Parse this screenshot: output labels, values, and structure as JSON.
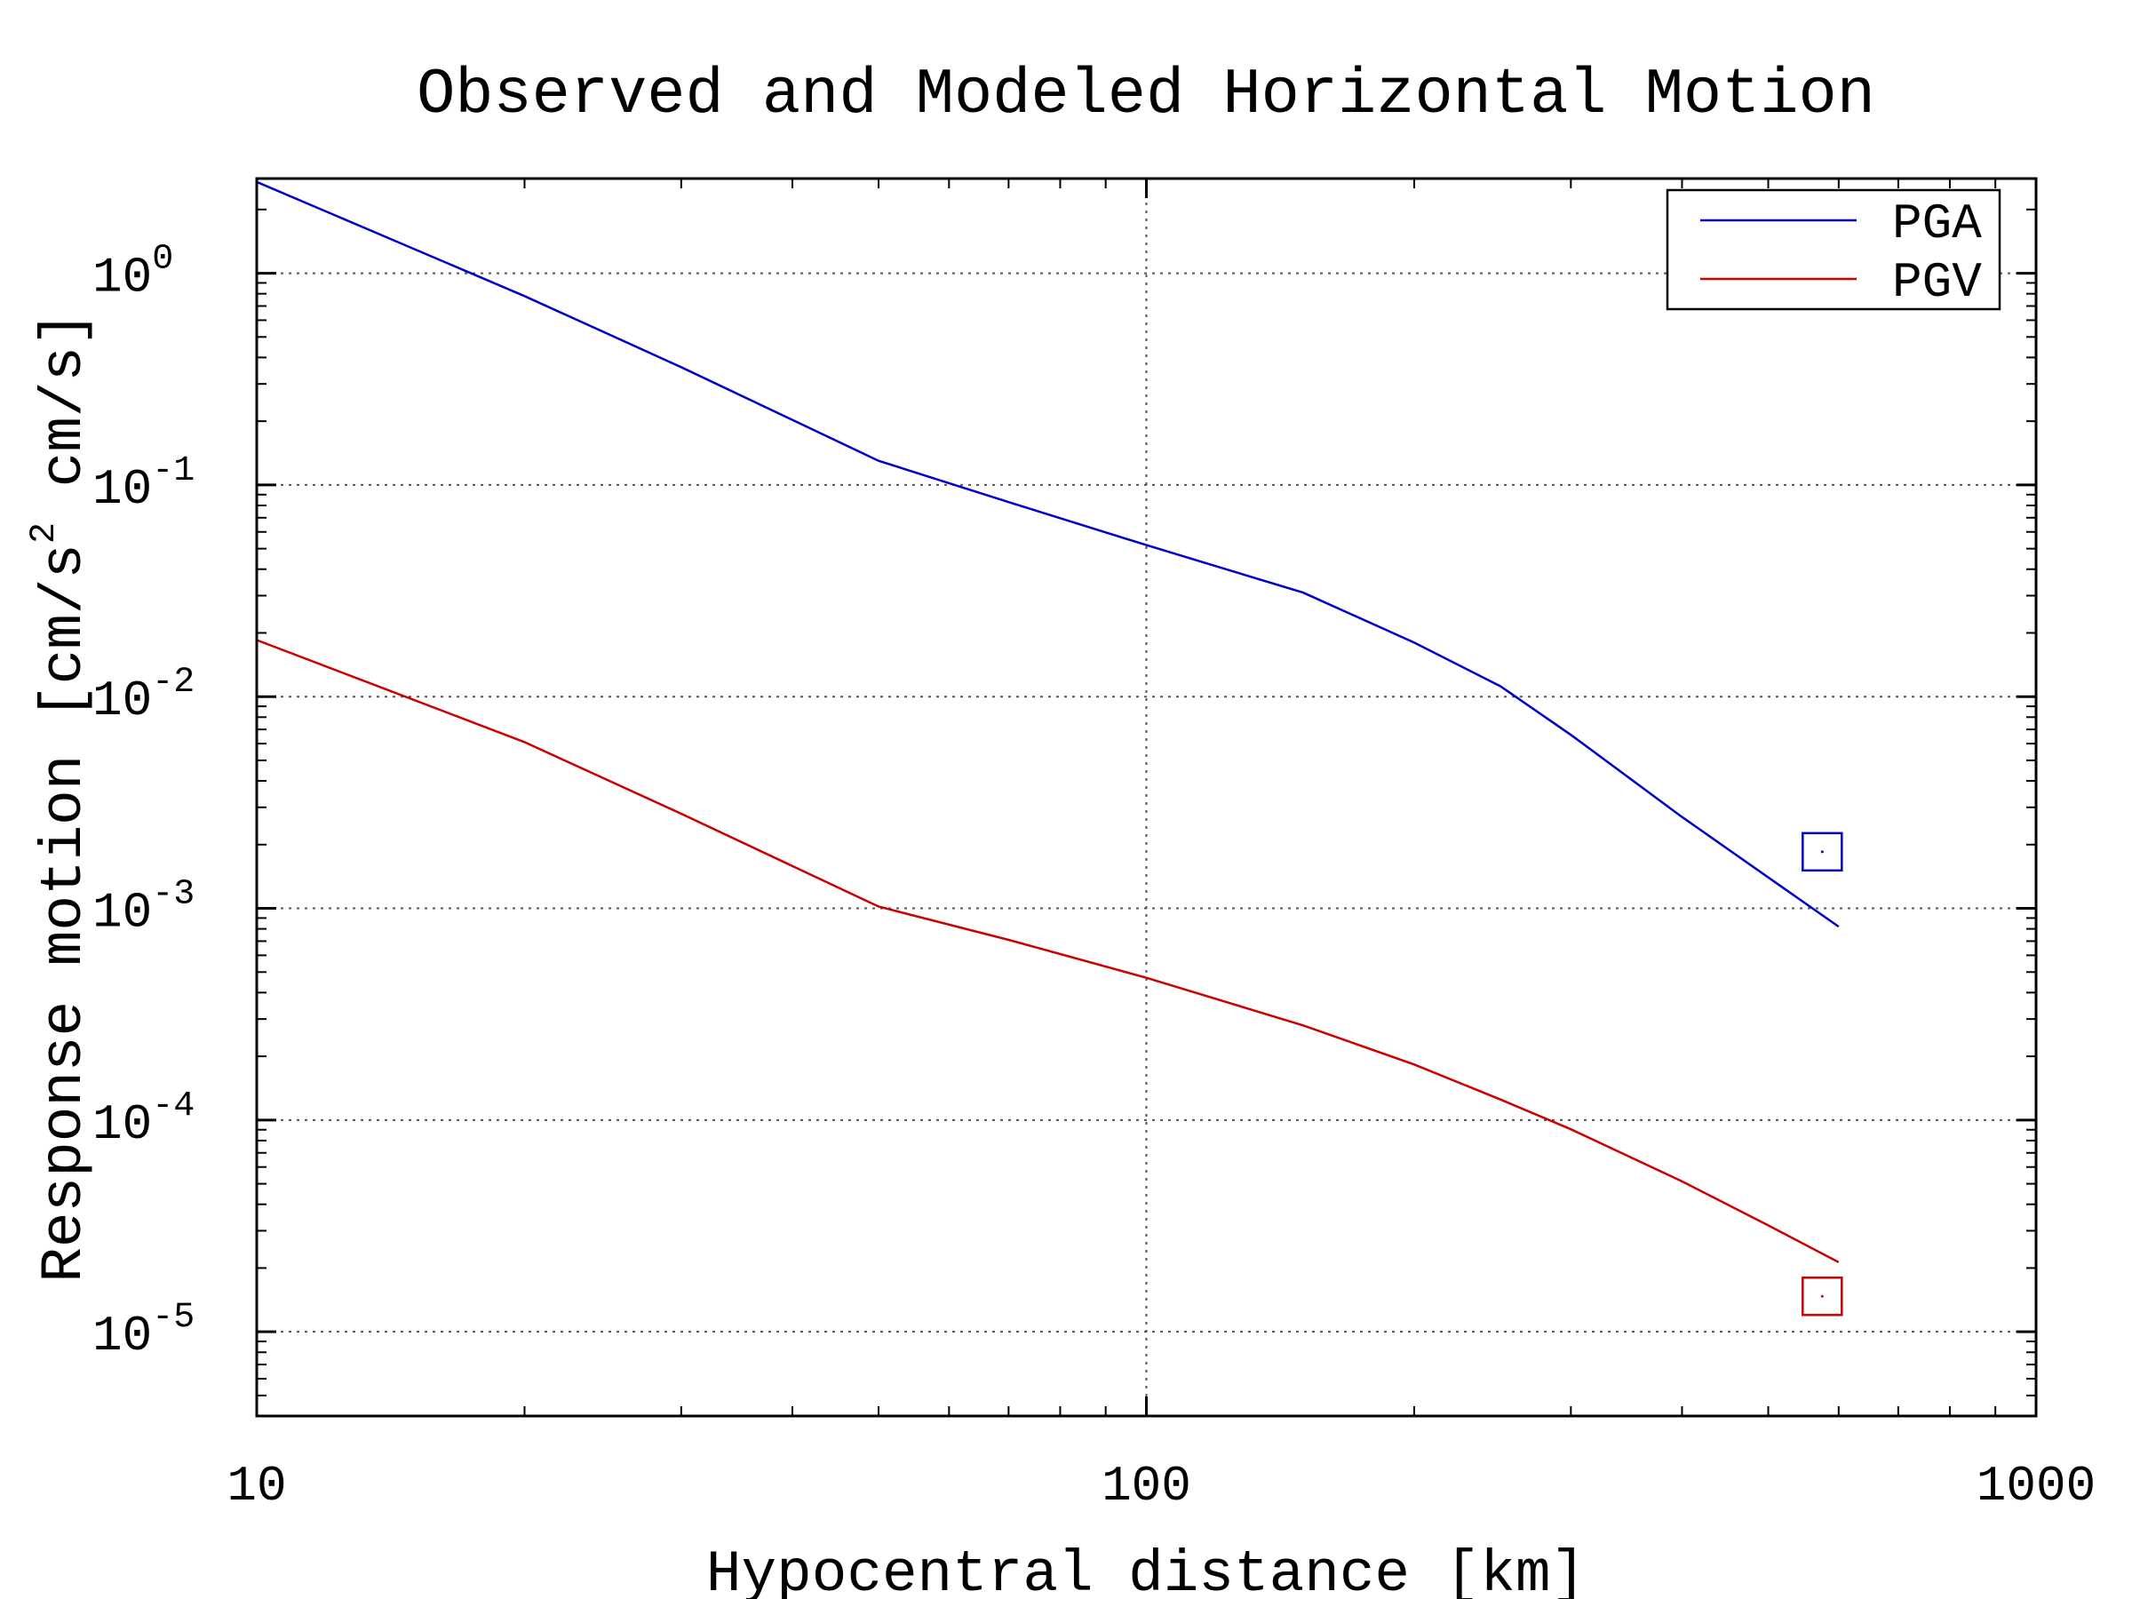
{
  "chart_data": {
    "type": "line",
    "title": "Observed and Modeled Horizontal Motion",
    "xlabel": "Hypocentral distance [km]",
    "ylabel": "Response motion [cm/s",
    "ylabel_sup": "2",
    "ylabel_tail": " cm/s]",
    "xscale": "log",
    "yscale": "log",
    "xlim": [
      10,
      1000
    ],
    "ylim": [
      4e-06,
      2.8
    ],
    "grid": true,
    "legend_position": "top-right",
    "x_ticks": [
      {
        "value": 10,
        "label": "10"
      },
      {
        "value": 100,
        "label": "100"
      },
      {
        "value": 1000,
        "label": "1000"
      }
    ],
    "y_ticks": [
      {
        "value": 1,
        "base": "10",
        "exp": "0"
      },
      {
        "value": 0.1,
        "base": "10",
        "exp": "-1"
      },
      {
        "value": 0.01,
        "base": "10",
        "exp": "-2"
      },
      {
        "value": 0.001,
        "base": "10",
        "exp": "-3"
      },
      {
        "value": 0.0001,
        "base": "10",
        "exp": "-4"
      },
      {
        "value": 1e-05,
        "base": "10",
        "exp": "-5"
      }
    ],
    "series": [
      {
        "name": "PGA",
        "color": "#0000cc",
        "x": [
          10,
          20,
          30,
          50,
          70,
          100,
          150,
          200,
          250,
          300,
          400,
          500,
          600
        ],
        "y": [
          2.7,
          0.78,
          0.36,
          0.13,
          0.083,
          0.052,
          0.031,
          0.018,
          0.0112,
          0.0066,
          0.0027,
          0.0014,
          0.00082
        ]
      },
      {
        "name": "PGV",
        "color": "#cc0000",
        "x": [
          10,
          20,
          30,
          50,
          70,
          100,
          150,
          200,
          250,
          300,
          400,
          500,
          600
        ],
        "y": [
          0.0185,
          0.0061,
          0.0028,
          0.00102,
          0.00071,
          0.00047,
          0.00028,
          0.000183,
          0.000125,
          9.05e-05,
          5.13e-05,
          3.18e-05,
          2.13e-05
        ]
      }
    ],
    "observed": [
      {
        "name": "PGA",
        "color": "#0000cc",
        "x": 575,
        "y": 0.00185
      },
      {
        "name": "PGV",
        "color": "#cc0000",
        "x": 575,
        "y": 1.47e-05
      }
    ]
  }
}
